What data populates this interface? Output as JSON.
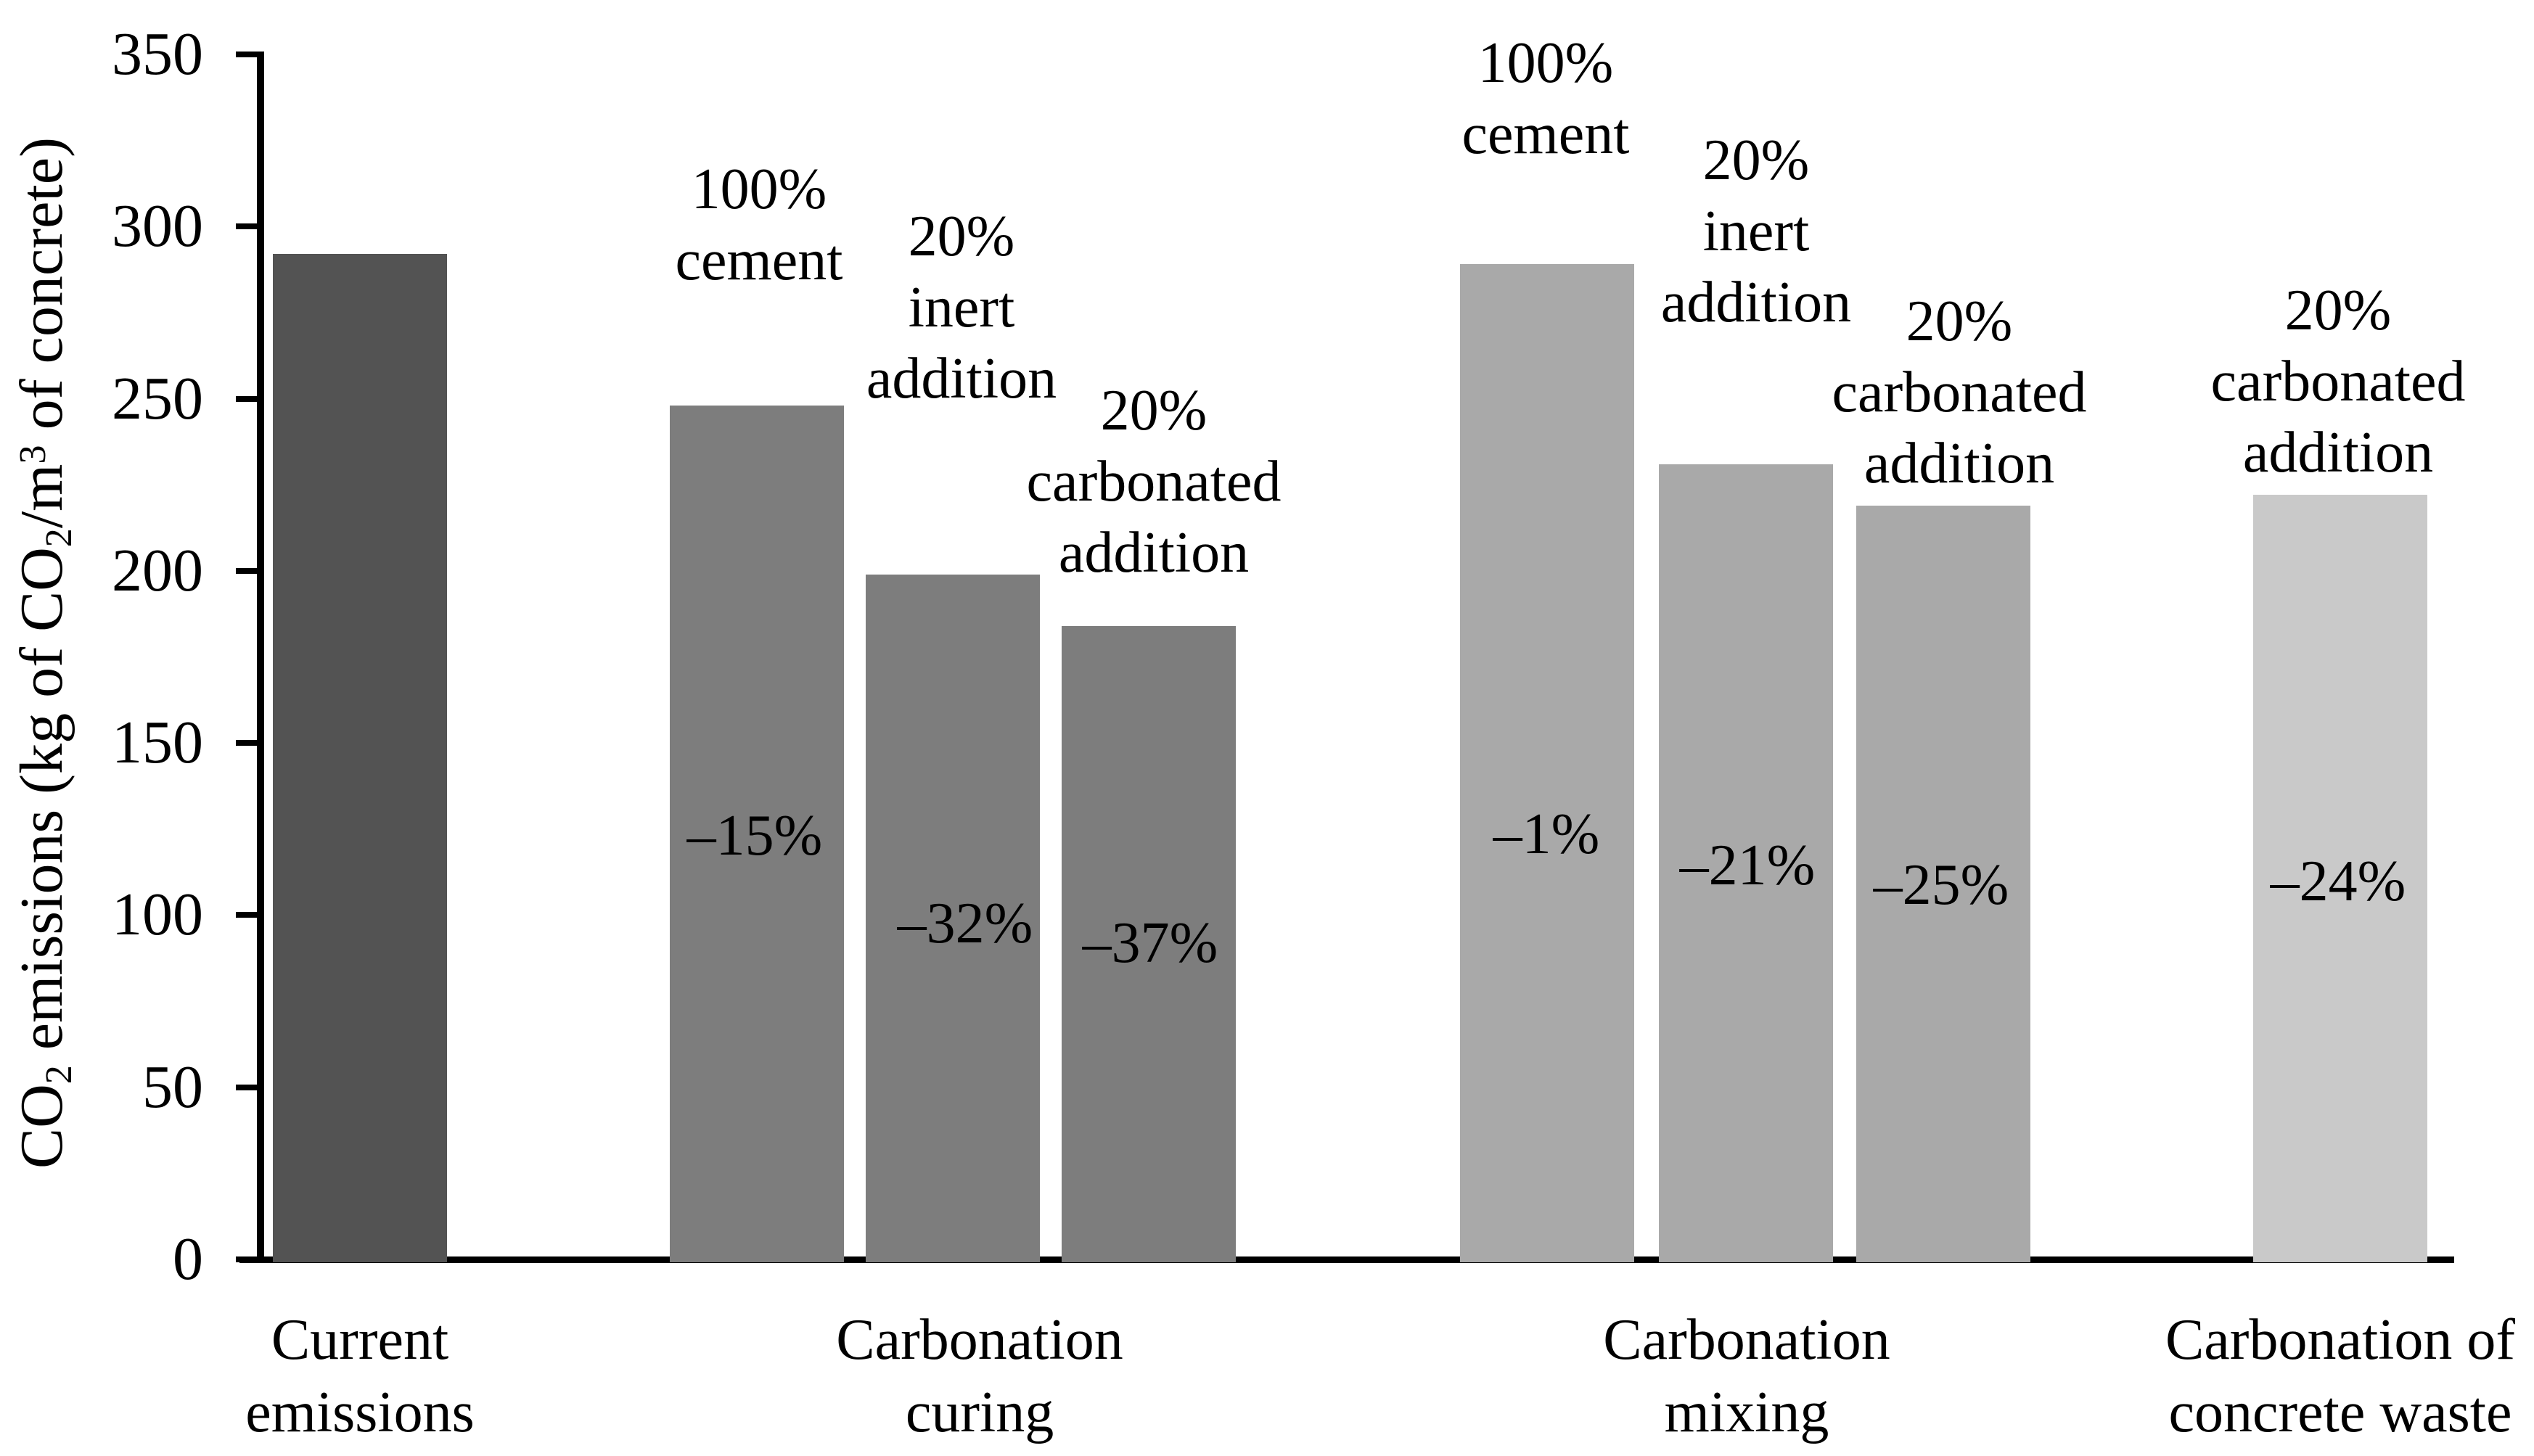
{
  "chart_data": {
    "type": "bar",
    "title": "",
    "xlabel": "",
    "ylabel": "CO₂ emissions (kg of CO₂/m³ of concrete)",
    "ylabel_segments": [
      {
        "t": "CO",
        "style": "normal"
      },
      {
        "t": "2",
        "style": "sub"
      },
      {
        "t": " emissions (kg of CO",
        "style": "normal"
      },
      {
        "t": "2",
        "style": "sub"
      },
      {
        "t": "/m",
        "style": "normal"
      },
      {
        "t": "3",
        "style": "sup"
      },
      {
        "t": " of concrete)",
        "style": "normal"
      }
    ],
    "ylim": [
      0,
      350
    ],
    "yticks": [
      350,
      300,
      250,
      200,
      150,
      100,
      50,
      0
    ],
    "grid": false,
    "legend_position": "none",
    "axis_color": "#000000",
    "background_color": "#ffffff",
    "groups": [
      {
        "label": "Current emissions",
        "label_lines": [
          "Current",
          "emissions"
        ],
        "bars": [
          {
            "name": "Current emissions",
            "annotation_lines": [],
            "value": 292,
            "delta": "",
            "color": "#535353"
          }
        ]
      },
      {
        "label": "Carbonation curing",
        "label_lines": [
          "Carbonation",
          "curing"
        ],
        "bars": [
          {
            "name": "100% cement",
            "annotation_lines": [
              "100%",
              "cement"
            ],
            "value": 248,
            "delta": "–15%",
            "color": "#7d7d7d"
          },
          {
            "name": "20% inert addition",
            "annotation_lines": [
              "20%",
              "inert",
              "addition"
            ],
            "value": 199,
            "delta": "–32%",
            "color": "#7d7d7d"
          },
          {
            "name": "20% carbonated addition",
            "annotation_lines": [
              "20%",
              "carbonated",
              "addition"
            ],
            "value": 184,
            "delta": "–37%",
            "color": "#7d7d7d"
          }
        ]
      },
      {
        "label": "Carbonation mixing",
        "label_lines": [
          "Carbonation",
          "mixing"
        ],
        "bars": [
          {
            "name": "100% cement",
            "annotation_lines": [
              "100%",
              "cement"
            ],
            "value": 289,
            "delta": "–1%",
            "color": "#a9a9a9"
          },
          {
            "name": "20% inert addition",
            "annotation_lines": [
              "20%",
              "inert",
              "addition"
            ],
            "value": 231,
            "delta": "–21%",
            "color": "#a9a9a9"
          },
          {
            "name": "20% carbonated addition",
            "annotation_lines": [
              "20%",
              "carbonated",
              "addition"
            ],
            "value": 219,
            "delta": "–25%",
            "color": "#a9a9a9"
          }
        ]
      },
      {
        "label": "Carbonation of concrete waste",
        "label_lines": [
          "Carbonation of",
          "concrete waste"
        ],
        "bars": [
          {
            "name": "20% carbonated addition",
            "annotation_lines": [
              "20%",
              "carbonated",
              "addition"
            ],
            "value": 222,
            "delta": "–24%",
            "color": "#c9c9c9"
          }
        ]
      }
    ]
  }
}
